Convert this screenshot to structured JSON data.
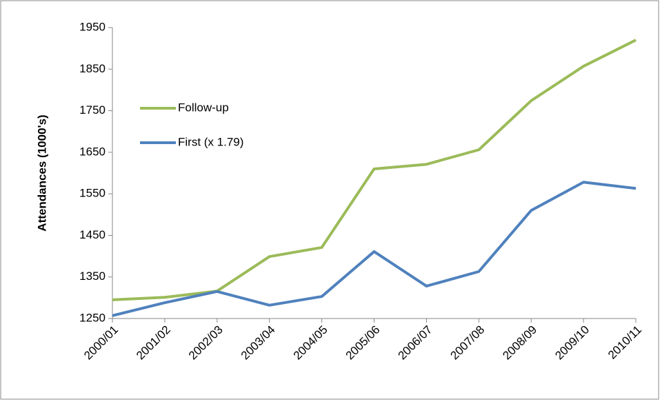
{
  "chart_data": {
    "type": "line",
    "y_label": "Attendances (1000's)",
    "categories": [
      "2000/01",
      "2001/02",
      "2002/03",
      "2003/04",
      "2004/05",
      "2005/06",
      "2006/07",
      "2007/08",
      "2008/09",
      "2009/10",
      "2010/11"
    ],
    "series": [
      {
        "name": "Follow-up",
        "color": "#9bbb59",
        "values": [
          1295,
          1301,
          1316,
          1399,
          1421,
          1610,
          1621,
          1656,
          1774,
          1857,
          1920
        ]
      },
      {
        "name": "First (x 1.79)",
        "color": "#4f81bd",
        "values": [
          1257,
          1288,
          1315,
          1282,
          1303,
          1411,
          1328,
          1363,
          1510,
          1578,
          1563
        ]
      }
    ],
    "ylim": [
      1250,
      1950
    ],
    "yticks": [
      1250,
      1350,
      1450,
      1550,
      1650,
      1750,
      1850,
      1950
    ],
    "grid": false,
    "legend": "left"
  }
}
